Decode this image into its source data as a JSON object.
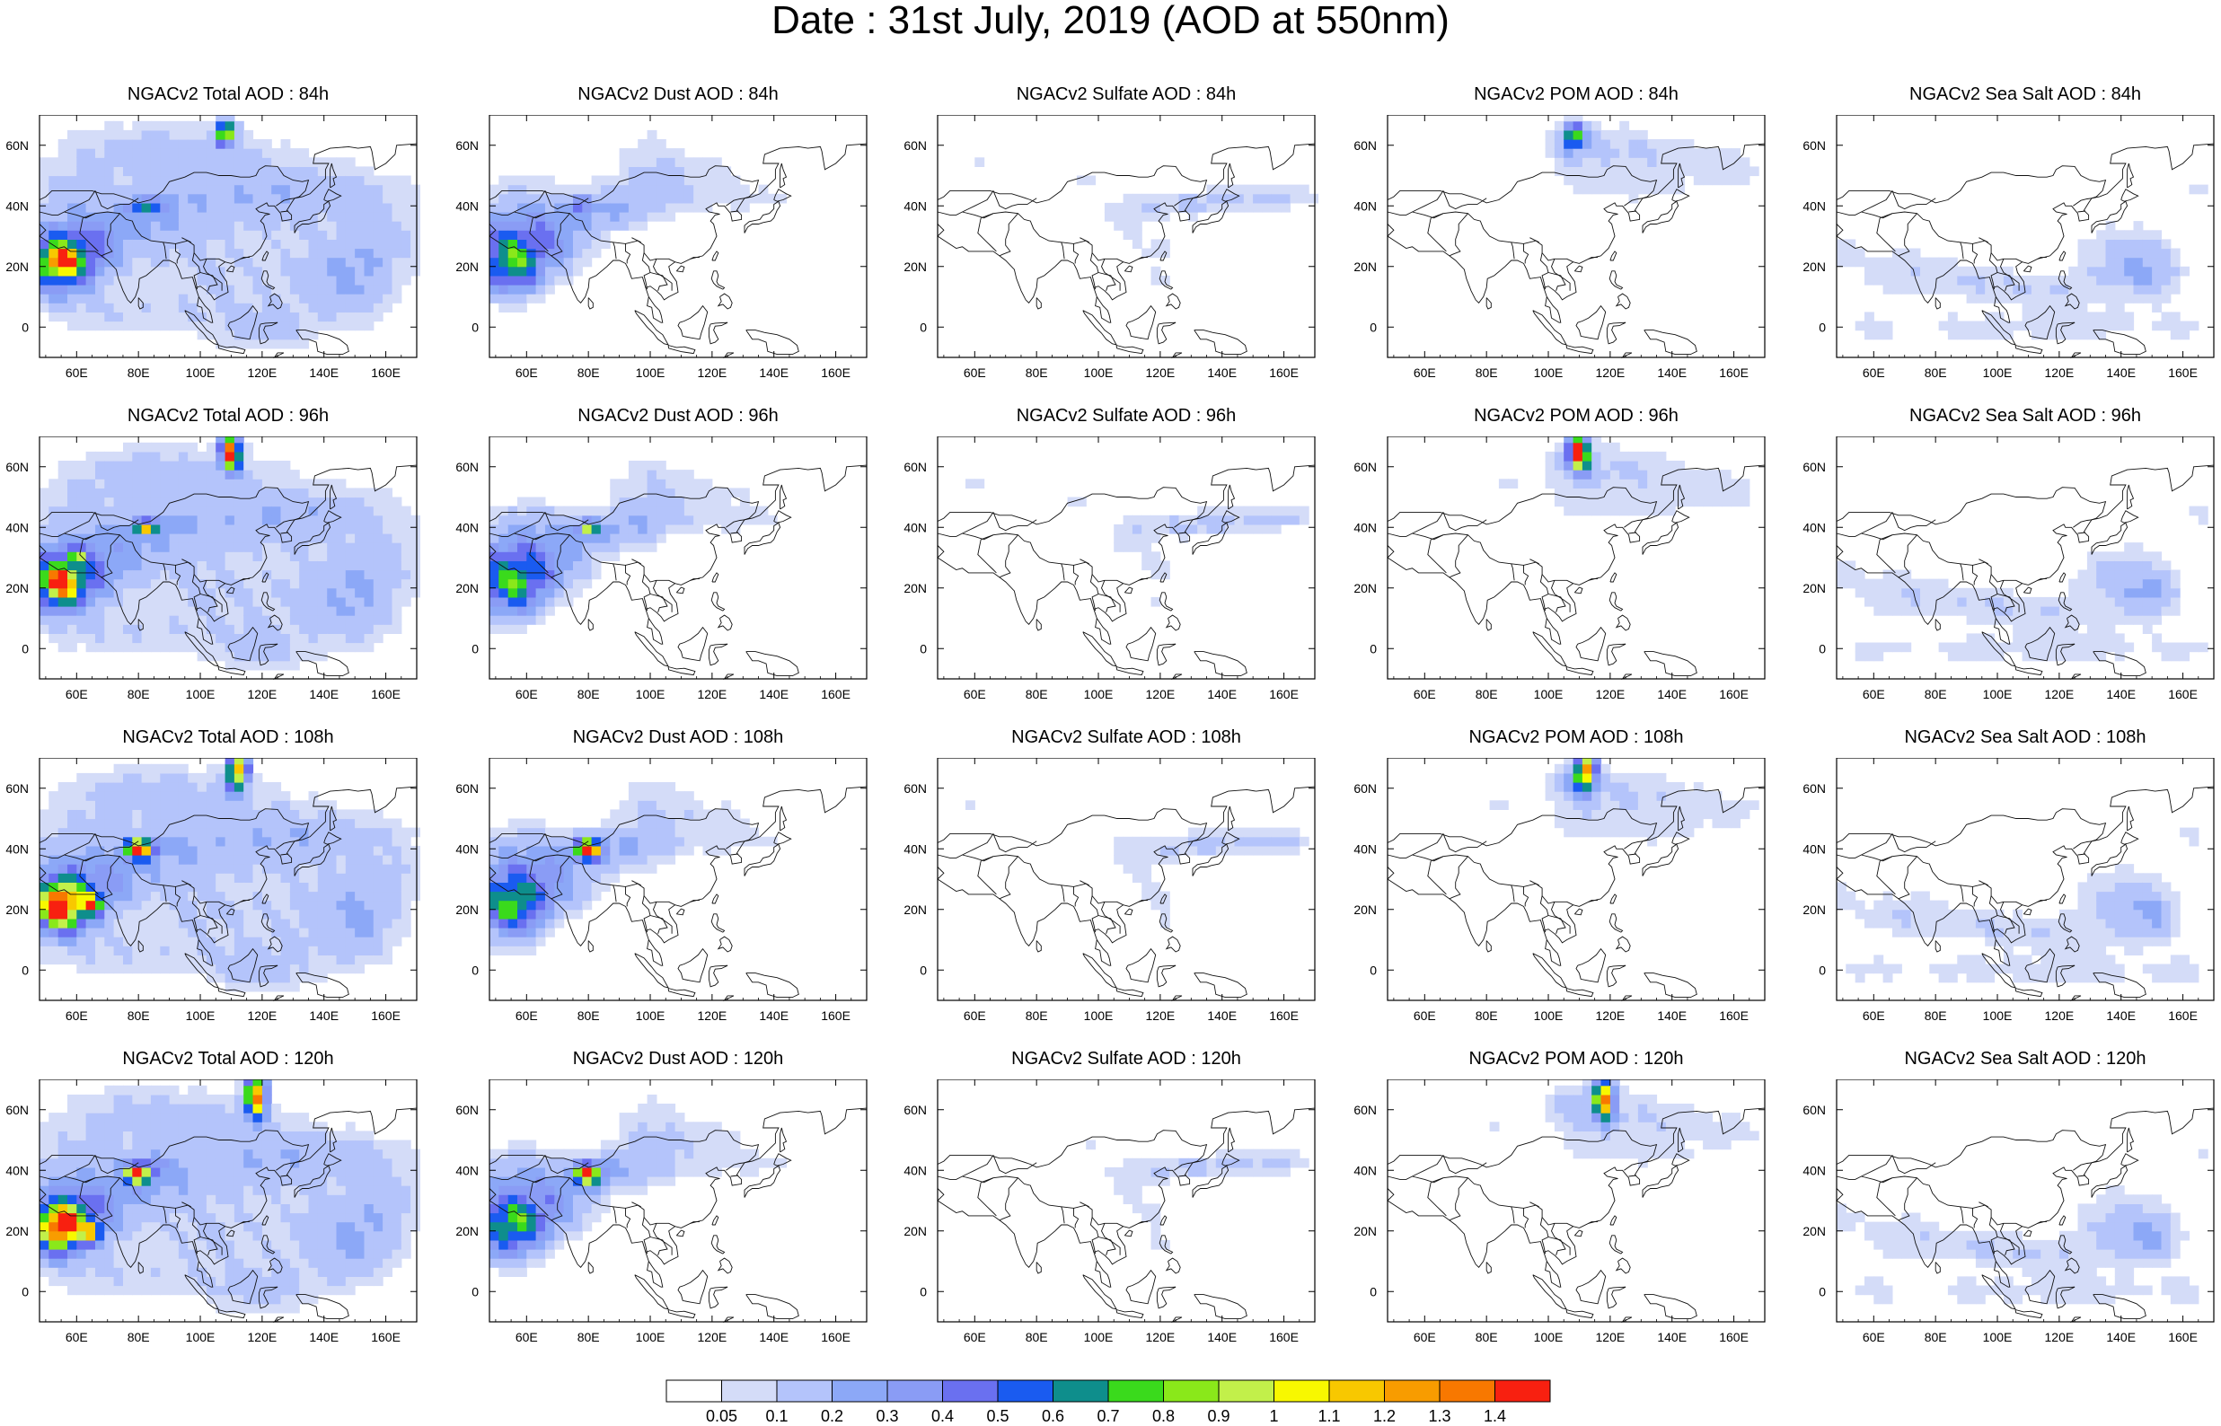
{
  "title": "Date : 31st July, 2019 (AOD at 550nm)",
  "panels": [
    [
      "NGACv2 Total AOD : 84h",
      "NGACv2 Dust AOD : 84h",
      "NGACv2 Sulfate AOD : 84h",
      "NGACv2 POM AOD : 84h",
      "NGACv2 Sea Salt AOD : 84h"
    ],
    [
      "NGACv2 Total AOD : 96h",
      "NGACv2 Dust AOD : 96h",
      "NGACv2 Sulfate AOD : 96h",
      "NGACv2 POM AOD : 96h",
      "NGACv2 Sea Salt AOD : 96h"
    ],
    [
      "NGACv2 Total AOD : 108h",
      "NGACv2 Dust AOD : 108h",
      "NGACv2 Sulfate AOD : 108h",
      "NGACv2 POM AOD : 108h",
      "NGACv2 Sea Salt AOD : 108h"
    ],
    [
      "NGACv2 Total AOD : 120h",
      "NGACv2 Dust AOD : 120h",
      "NGACv2 Sulfate AOD : 120h",
      "NGACv2 POM AOD : 120h",
      "NGACv2 Sea Salt  AOD : 120h"
    ]
  ],
  "axes": {
    "lon_ticks": [
      "60E",
      "80E",
      "100E",
      "120E",
      "140E",
      "160E"
    ],
    "lat_ticks": [
      "60N",
      "40N",
      "20N",
      "0"
    ],
    "lon_range": [
      48,
      170
    ],
    "lat_range": [
      -10,
      70
    ]
  },
  "colorbar": {
    "colors": [
      "#ffffff",
      "#d4dcf8",
      "#b4c4fb",
      "#8ca8f7",
      "#8a9cf5",
      "#6a70f0",
      "#1a5bf0",
      "#0e8e8c",
      "#3ada1c",
      "#8ae81a",
      "#c2f04a",
      "#f8f800",
      "#f8c800",
      "#f89c00",
      "#f87800",
      "#f82010"
    ],
    "labels": [
      "0.05",
      "0.1",
      "0.2",
      "0.3",
      "0.4",
      "0.5",
      "0.6",
      "0.7",
      "0.8",
      "0.9",
      "1",
      "1.1",
      "1.2",
      "1.3",
      "1.4"
    ]
  }
}
